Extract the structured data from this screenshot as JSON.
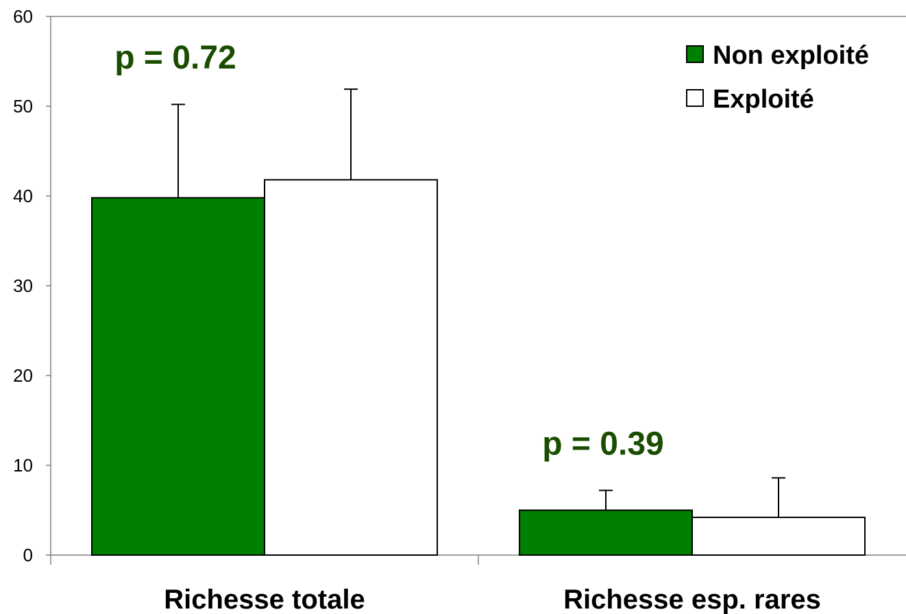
{
  "chart_data": {
    "type": "bar",
    "categories": [
      "Richesse totale",
      "Richesse esp. rares"
    ],
    "series": [
      {
        "name": "Non exploité",
        "values": [
          39.8,
          5.0
        ],
        "errors": [
          10.4,
          2.2
        ],
        "color": "#008000"
      },
      {
        "name": "Exploité",
        "values": [
          41.8,
          4.2
        ],
        "errors": [
          10.1,
          4.4
        ],
        "color": "#ffffff"
      }
    ],
    "annotations": [
      {
        "category_index": 0,
        "text": "p = 0.72",
        "y": 55.5
      },
      {
        "category_index": 1,
        "text": "p = 0.39",
        "y": 12.5
      }
    ],
    "annotation_color": "#1a4d00",
    "ylim": [
      0,
      60
    ],
    "yticks": [
      0,
      10,
      20,
      30,
      40,
      50,
      60
    ],
    "title": "",
    "xlabel": "",
    "ylabel": "",
    "grid": false,
    "legend_position": "top-right"
  }
}
